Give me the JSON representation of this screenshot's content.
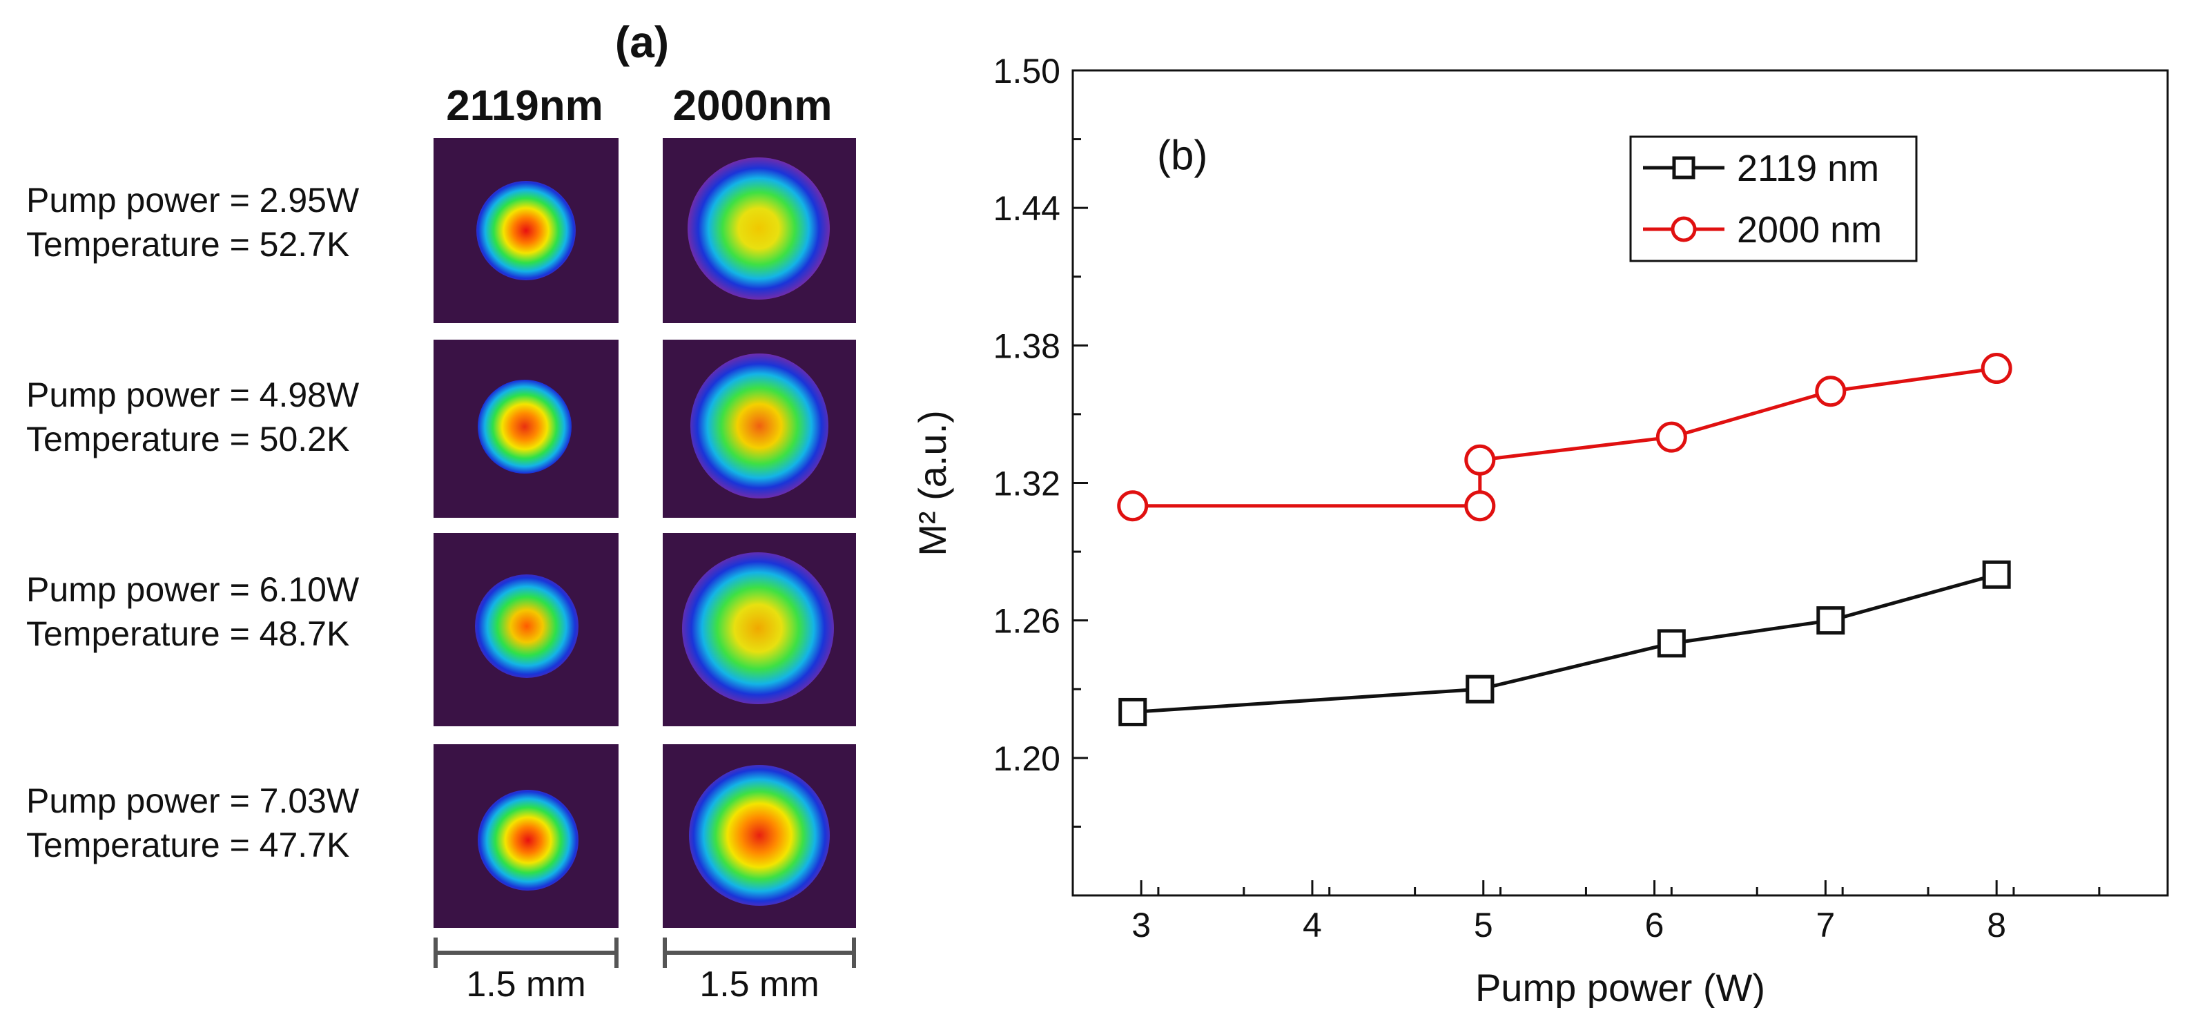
{
  "panel_a": {
    "title": "(a)",
    "columns": [
      "2119nm",
      "2000nm"
    ],
    "rows": [
      {
        "pump": "Pump power = 2.95W",
        "temp": "Temperature = 52.7K"
      },
      {
        "pump": "Pump power = 4.98W",
        "temp": "Temperature = 50.2K"
      },
      {
        "pump": "Pump power = 6.10W",
        "temp": "Temperature = 48.7K"
      },
      {
        "pump": "Pump power = 7.03W",
        "temp": "Temperature = 47.7K"
      }
    ],
    "scale_labels": [
      "1.5 mm",
      "1.5 mm"
    ]
  },
  "chart_data": {
    "type": "line",
    "panel_label": "(b)",
    "xlabel": "Pump power (W)",
    "ylabel": "M² (a.u.)",
    "xlim": [
      2.6,
      9.0
    ],
    "ylim": [
      1.14,
      1.5
    ],
    "xticks": [
      3,
      4,
      5,
      6,
      7,
      8
    ],
    "yticks": [
      1.2,
      1.26,
      1.32,
      1.38,
      1.44,
      1.5
    ],
    "ytick_labels": [
      "1.20",
      "1.26",
      "1.32",
      "1.38",
      "1.44",
      "1.50"
    ],
    "legend_position": "top-right",
    "grid": false,
    "series": [
      {
        "name": "2119 nm",
        "color": "#111111",
        "marker": "square",
        "x": [
          2.95,
          4.98,
          4.98,
          6.1,
          7.03,
          8.0
        ],
        "y": [
          1.22,
          1.23,
          1.23,
          1.25,
          1.26,
          1.28
        ]
      },
      {
        "name": "2000 nm",
        "color": "#e01010",
        "marker": "circle",
        "x": [
          2.95,
          4.98,
          4.98,
          6.1,
          7.03,
          8.0
        ],
        "y": [
          1.31,
          1.31,
          1.33,
          1.34,
          1.36,
          1.37
        ]
      }
    ]
  }
}
